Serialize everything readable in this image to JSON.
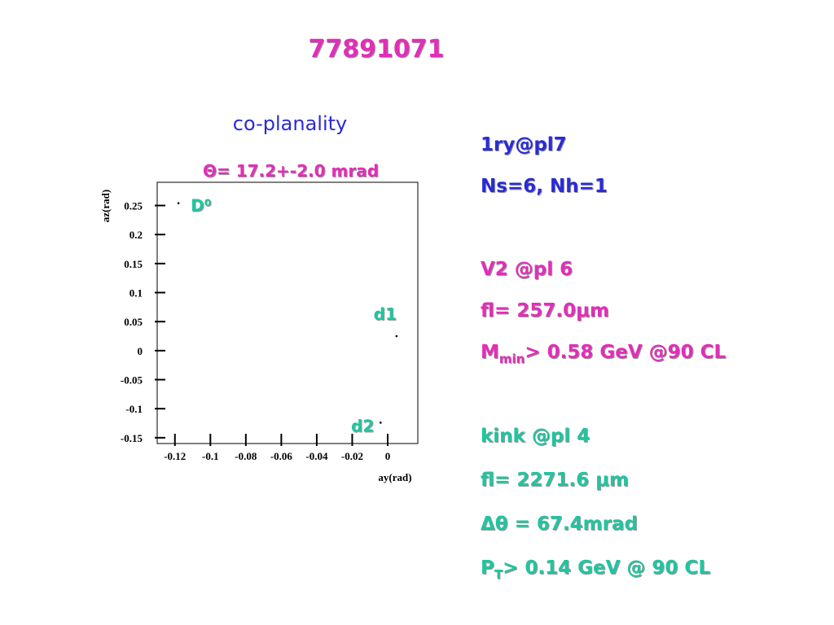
{
  "title": "77891071",
  "chart_data": {
    "type": "scatter",
    "title": "co-planality",
    "subtitle": "Θ= 17.2+-2.0 mrad",
    "x_label": "ay(rad)",
    "y_label": "az(rad)",
    "x": [
      -0.118,
      0.005,
      -0.004
    ],
    "values": [
      0.254,
      0.025,
      -0.124
    ],
    "point_labels": [
      "D⁰",
      "d1",
      "d2"
    ],
    "color": "#000000",
    "label_color": "#22c4a0",
    "xlim": [
      -0.13,
      0.017
    ],
    "ylim": [
      -0.16,
      0.29
    ],
    "xticks": [
      -0.12,
      -0.1,
      -0.08,
      -0.06,
      -0.04,
      -0.02,
      0
    ],
    "yticks": [
      -0.15,
      -0.1,
      -0.05,
      0,
      0.05,
      0.1,
      0.15,
      0.2,
      0.25
    ],
    "grid": false
  },
  "info": [
    {
      "color": "#2b2bd6",
      "lines": [
        [
          {
            "text": "1ry@pl7"
          }
        ],
        [
          {
            "text": "Ns=6, Nh=1"
          }
        ]
      ]
    },
    {
      "color": "#e02fb8",
      "lines": [
        [
          {
            "text": "V2 @pl 6"
          }
        ],
        [
          {
            "text": "fl= 257.0μm"
          }
        ],
        [
          {
            "text": "M"
          },
          {
            "sub": "min"
          },
          {
            "text": "> 0.58 GeV @90 CL"
          }
        ]
      ]
    },
    {
      "color": "#22c4a0",
      "lines": [
        [
          {
            "text": "kink @pl 4"
          }
        ],
        [
          {
            "text": "fl= 2271.6 μm"
          }
        ],
        [
          {
            "text": "Δθ = 67.4mrad"
          }
        ],
        [
          {
            "text": "P"
          },
          {
            "sub": "T"
          },
          {
            "text": "> 0.14 GeV @ 90 CL"
          }
        ]
      ]
    }
  ]
}
